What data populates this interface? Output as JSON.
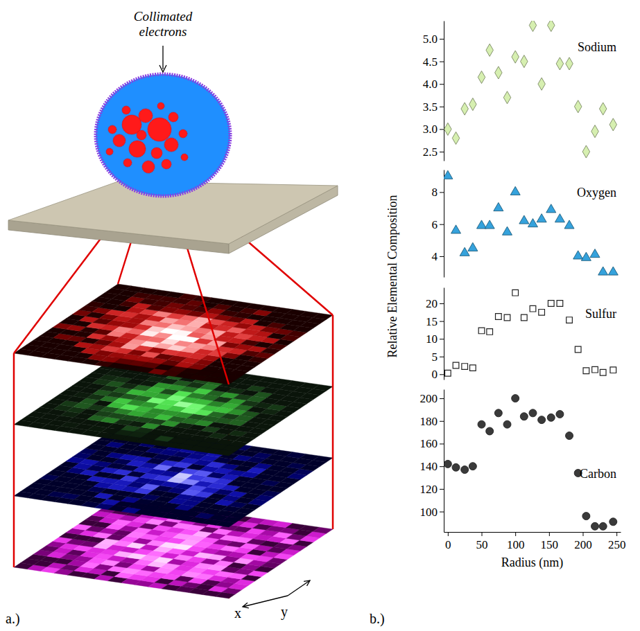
{
  "figure": {
    "panel_a": {
      "label": "a.)",
      "beam_label": "Collimated electrons",
      "axis_labels": [
        "x",
        "y"
      ]
    },
    "panel_b": {
      "label": "b.)",
      "ylabel": "Relative Elemental Composition"
    }
  },
  "chart_data": [
    {
      "type": "scatter",
      "tick_labels": "y",
      "x": [
        0,
        12,
        25,
        37,
        50,
        62,
        75,
        88,
        100,
        113,
        126,
        139,
        153,
        166,
        180,
        193,
        205,
        218,
        230,
        245
      ],
      "series": [
        {
          "name": "Sodium",
          "color": "#d6efb0",
          "marker": "diamond",
          "values": [
            3.0,
            2.8,
            3.45,
            3.55,
            4.15,
            4.75,
            4.25,
            3.7,
            4.6,
            4.5,
            5.3,
            4.0,
            5.3,
            4.45,
            4.45,
            3.5,
            2.5,
            2.95,
            3.45,
            3.1
          ]
        }
      ],
      "xlim": [
        -6,
        256
      ],
      "ylim": [
        2.3,
        5.4
      ],
      "yticks": [
        2.5,
        {
          "value": 3,
          "label": "3.0"
        },
        3.5,
        {
          "value": 4,
          "label": "4.0"
        },
        4.5,
        {
          "value": 5,
          "label": "5.0"
        }
      ]
    },
    {
      "type": "scatter",
      "tick_labels": "y",
      "x": [
        0,
        12,
        25,
        37,
        50,
        62,
        75,
        88,
        100,
        113,
        126,
        139,
        153,
        166,
        180,
        193,
        205,
        218,
        230,
        245
      ],
      "series": [
        {
          "name": "Oxygen",
          "color": "#35a2dc",
          "marker": "triangle",
          "values": [
            9.0,
            5.6,
            4.2,
            4.5,
            5.9,
            5.9,
            7.0,
            5.5,
            8.0,
            6.2,
            6.0,
            6.3,
            6.9,
            6.3,
            5.9,
            4.0,
            3.9,
            4.1,
            3.0,
            3.0
          ]
        }
      ],
      "xlim": [
        -6,
        256
      ],
      "ylim": [
        2.7,
        9.4
      ],
      "yticks": [
        4,
        6,
        8
      ]
    },
    {
      "type": "scatter",
      "tick_labels": "y",
      "x": [
        0,
        12,
        25,
        37,
        50,
        62,
        75,
        88,
        100,
        113,
        126,
        139,
        153,
        166,
        180,
        193,
        205,
        218,
        230,
        245
      ],
      "series": [
        {
          "name": "Sulfur",
          "color": "#ffffff",
          "marker": "square",
          "values": [
            0.3,
            2.5,
            2.2,
            1.8,
            12.3,
            12.0,
            16.3,
            16.0,
            23.0,
            16.0,
            18.5,
            17.5,
            20.0,
            20.0,
            15.3,
            7.0,
            1.0,
            1.3,
            0.5,
            1.2
          ]
        }
      ],
      "xlim": [
        -6,
        256
      ],
      "ylim": [
        -1.5,
        24.5
      ],
      "yticks": [
        0,
        5,
        10,
        15,
        20
      ]
    },
    {
      "type": "scatter",
      "xlabel": "Radius (nm)",
      "x": [
        0,
        12,
        25,
        37,
        50,
        62,
        75,
        88,
        100,
        113,
        126,
        139,
        153,
        166,
        180,
        193,
        205,
        218,
        230,
        245
      ],
      "series": [
        {
          "name": "Carbon",
          "color": "#3a3a3a",
          "marker": "circle",
          "values": [
            142,
            139,
            137,
            140,
            177,
            171,
            187,
            177,
            200,
            184,
            187,
            181,
            183,
            186,
            167,
            134,
            96,
            87,
            87,
            91
          ]
        }
      ],
      "xlim": [
        -6,
        256
      ],
      "ylim": [
        82,
        208
      ],
      "xticks": [
        0,
        50,
        100,
        150,
        200,
        250
      ],
      "yticks": [
        100,
        120,
        140,
        160,
        180,
        200
      ]
    }
  ]
}
